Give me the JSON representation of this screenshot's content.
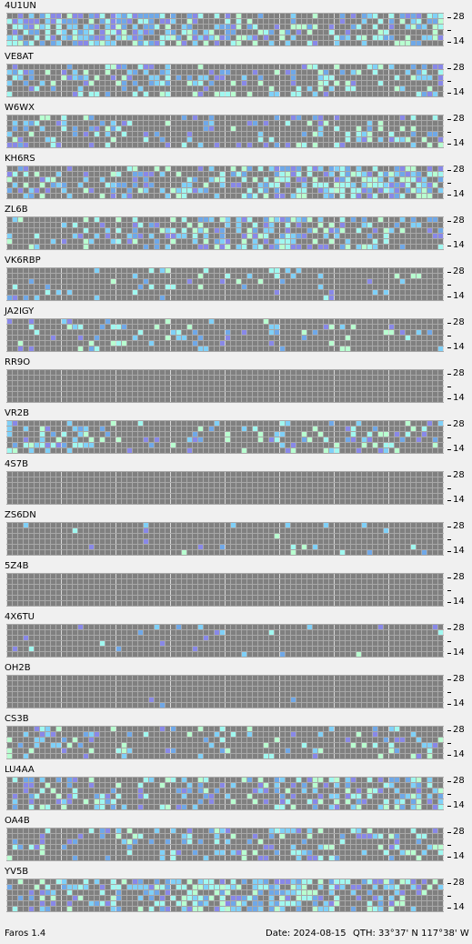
{
  "app": {
    "name": "Faros 1.4"
  },
  "status": {
    "date_text": "Date: 2024-08-15",
    "qth_text": "QTH: 33°37' N  117°38' W"
  },
  "axis": {
    "top_label": "28",
    "bottom_label": "14"
  },
  "colors": {
    "background": "#f0f0f0",
    "grid_empty": "#808080",
    "grid_line": "#a8a8a8",
    "hour_line": "#d8d8d8",
    "level_1": "#6fa8e8",
    "level_2": "#7fd0f8",
    "level_3": "#a0f8f0",
    "level_4": "#8888e8",
    "level_5": "#b8ffd0"
  },
  "beacons": [
    {
      "call": "4U1UN",
      "activity": 0.78
    },
    {
      "call": "VE8AT",
      "activity": 0.45
    },
    {
      "call": "W6WX",
      "activity": 0.35
    },
    {
      "call": "KH6RS",
      "activity": 0.62
    },
    {
      "call": "ZL6B",
      "activity": 0.48
    },
    {
      "call": "VK6RBP",
      "activity": 0.15
    },
    {
      "call": "JA2IGY",
      "activity": 0.22
    },
    {
      "call": "RR9O",
      "activity": 0.0
    },
    {
      "call": "VR2B",
      "activity": 0.3
    },
    {
      "call": "4S7B",
      "activity": 0.0
    },
    {
      "call": "ZS6DN",
      "activity": 0.08
    },
    {
      "call": "5Z4B",
      "activity": 0.0
    },
    {
      "call": "4X6TU",
      "activity": 0.06
    },
    {
      "call": "OH2B",
      "activity": 0.01
    },
    {
      "call": "CS3B",
      "activity": 0.25
    },
    {
      "call": "LU4AA",
      "activity": 0.5
    },
    {
      "call": "OA4B",
      "activity": 0.35
    },
    {
      "call": "YV5B",
      "activity": 0.7
    }
  ]
}
